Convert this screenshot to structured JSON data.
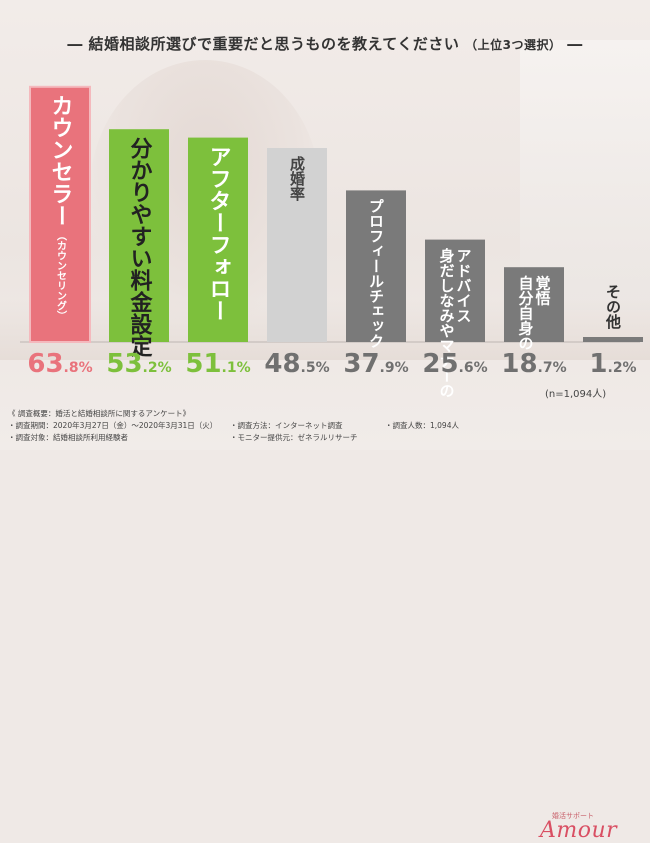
{
  "title": {
    "main": "結婚相談所選びで重要だと思うものを教えてください",
    "sub": "（上位3つ選択）"
  },
  "n_label": "(n=1,094人)",
  "chart_data": {
    "type": "bar",
    "title": "結婚相談所選びで重要だと思うものを教えてください（上位3つ選択）",
    "categories": [
      "カウンセラー",
      "分かりやすい料金設定",
      "アフターフォロー",
      "成婚率",
      "プロフィールチェック",
      "身だしなみやマナーのアドバイス",
      "自分自身の覚悟",
      "その他"
    ],
    "category_lines": [
      [
        "カウンセラー"
      ],
      [
        "分かりやすい料金設定"
      ],
      [
        "アフターフォロー"
      ],
      [
        "成婚率"
      ],
      [
        "プロフィールチェック"
      ],
      [
        "身だしなみやマナーの",
        "アドバイス"
      ],
      [
        "自分自身の",
        "覚悟"
      ],
      [
        "その他"
      ]
    ],
    "category_note": "（カウンセリング）",
    "values": [
      63.8,
      53.2,
      51.1,
      48.5,
      37.9,
      25.6,
      18.7,
      1.2
    ],
    "value_int": [
      "63",
      "53",
      "51",
      "48",
      "37",
      "25",
      "18",
      "1"
    ],
    "value_dec": [
      ".8%",
      ".2%",
      ".1%",
      ".5%",
      ".9%",
      ".6%",
      ".7%",
      ".2%"
    ],
    "colors": {
      "bars": [
        "#e9737c",
        "#7dc03c",
        "#7dc03c",
        "#d2d2d2",
        "#7a7a7a",
        "#7a7a7a",
        "#7a7a7a",
        "#7a7a7a"
      ],
      "labels": [
        "#e9737c",
        "#7dc03c",
        "#7dc03c",
        "#707070",
        "#707070",
        "#707070",
        "#707070",
        "#707070"
      ],
      "bar_text": [
        "#ffffff",
        "#222222",
        "#ffffff",
        "#444444",
        "#ffffff",
        "#ffffff",
        "#ffffff",
        "#222222"
      ],
      "top1_bar_stroke": "#f4b9bd"
    },
    "ylim": [
      0,
      70
    ],
    "xlabel": "",
    "ylabel": ""
  },
  "footer": {
    "line1": "《 調査概要：婚活と結婚相談所に関するアンケート》",
    "period": "・調査期間：2020年3月27日（金）～2020年3月31日（火）",
    "method": "・調査方法：インターネット調査",
    "count": "・調査人数：1,094人",
    "target": "・調査対象：結婚相談所利用経験者",
    "provider": "・モニター提供元：ゼネラルリサーチ"
  },
  "logo": {
    "small": "婚活サポート",
    "text": "Amour"
  }
}
